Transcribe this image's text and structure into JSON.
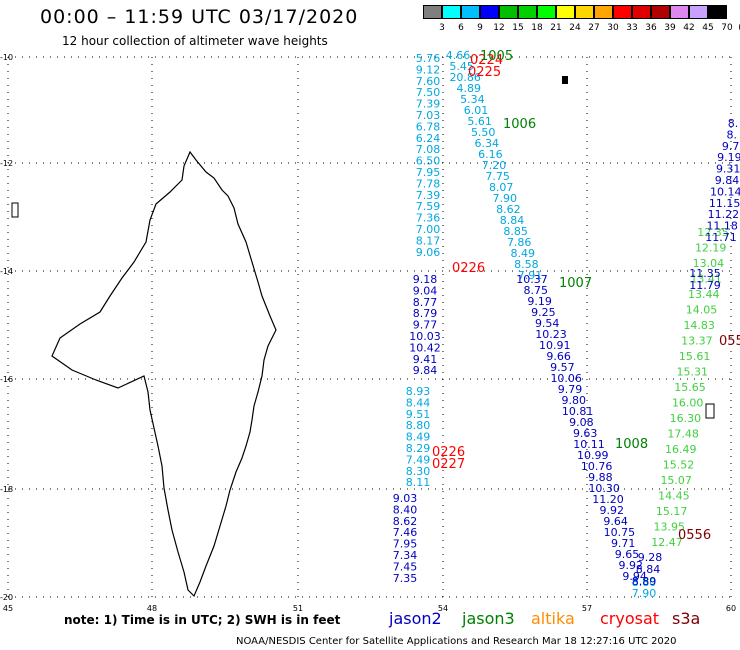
{
  "title": "00:00 – 11:59 UTC 03/17/2020",
  "subtitle": "12 hour collection of altimeter wave heights",
  "scale": {
    "unit": "(ft)",
    "steps": [
      {
        "label": "3",
        "color": "#7f7f7f"
      },
      {
        "label": "6",
        "color": "#00ffff"
      },
      {
        "label": "9",
        "color": "#00bfff"
      },
      {
        "label": "12",
        "color": "#0000ff"
      },
      {
        "label": "15",
        "color": "#00bf00"
      },
      {
        "label": "18",
        "color": "#00d000"
      },
      {
        "label": "21",
        "color": "#00ff00"
      },
      {
        "label": "24",
        "color": "#ffff00"
      },
      {
        "label": "27",
        "color": "#ffd700"
      },
      {
        "label": "30",
        "color": "#ffa500"
      },
      {
        "label": "33",
        "color": "#ff0000"
      },
      {
        "label": "36",
        "color": "#e00000"
      },
      {
        "label": "39",
        "color": "#b00000"
      },
      {
        "label": "42",
        "color": "#dd88ee"
      },
      {
        "label": "45",
        "color": "#c8a0ff"
      },
      {
        "label": "70",
        "color": "#000000"
      }
    ]
  },
  "axes": {
    "lon_labels": [
      "45",
      "48",
      "51",
      "54",
      "57",
      "60"
    ],
    "lat_labels": [
      "-10",
      "-12",
      "-14",
      "-16",
      "-18",
      "-20"
    ]
  },
  "colors": {
    "jason2": "#0000c0",
    "jason3": "#008000",
    "altika": "#ff8c00",
    "cryosat": "#ff0000",
    "s3a": "#800000",
    "cyan": "#00a8e0",
    "lightgreen": "#40d040"
  },
  "track_labels": [
    {
      "text": "0224",
      "sat": "cryosat"
    },
    {
      "text": "1005",
      "sat": "jason3"
    },
    {
      "text": "0225",
      "sat": "cryosat"
    },
    {
      "text": "1006",
      "sat": "jason3"
    },
    {
      "text": "0226",
      "sat": "cryosat"
    },
    {
      "text": "1007",
      "sat": "jason3"
    },
    {
      "text": "0226",
      "sat": "cryosat"
    },
    {
      "text": "0227",
      "sat": "cryosat"
    },
    {
      "text": "1008",
      "sat": "jason3"
    },
    {
      "text": "0556",
      "sat": "s3a"
    },
    {
      "text": "055",
      "sat": "s3a"
    }
  ],
  "tracks": [
    {
      "id": "A",
      "color": "cyan",
      "values": [
        "5.76",
        "9.12",
        "7.60",
        "7.50",
        "7.39",
        "7.03",
        "6.78",
        "6.24",
        "7.08",
        "6.50",
        "7.95",
        "7.78",
        "7.39",
        "7.59",
        "7.36",
        "7.00",
        "8.17",
        "9.06"
      ]
    },
    {
      "id": "A2",
      "color": "jason2",
      "values": [
        "9.18",
        "9.04",
        "8.77",
        "8.79",
        "9.77",
        "10.03",
        "10.42",
        "9.41",
        "9.84"
      ]
    },
    {
      "id": "A3",
      "color": "cyan",
      "values": [
        "8.93",
        "8.44",
        "9.51",
        "8.80",
        "8.49",
        "8.29",
        "7.49",
        "8.30",
        "8.11"
      ]
    },
    {
      "id": "A4",
      "color": "jason2",
      "values": [
        "9.03",
        "8.40",
        "8.62",
        "7.46",
        "7.95",
        "7.34",
        "7.45",
        "7.35"
      ]
    },
    {
      "id": "B",
      "color": "cyan",
      "values": [
        "4.66",
        "5.45",
        "20.86",
        "4.89",
        "5.34",
        "6.01",
        "5.61",
        "5.50",
        "6.34",
        "6.16",
        "7.20",
        "7.75",
        "8.07",
        "7.90",
        "8.62",
        "8.84",
        "8.85",
        "7.86",
        "8.49",
        "8.58",
        "7.91"
      ]
    },
    {
      "id": "B2",
      "color": "jason2",
      "values": [
        "10.37",
        "8.75",
        "9.19",
        "9.25",
        "9.54",
        "10.23",
        "10.91",
        "9.66",
        "9.57",
        "10.06",
        "9.79",
        "9.80",
        "10.81",
        "9.08",
        "9.63",
        "10.11",
        "10.99",
        "10.76",
        "9.88",
        "10.30",
        "11.20",
        "9.92",
        "9.64",
        "10.75",
        "9.71",
        "9.65",
        "9.92",
        "9.94"
      ]
    },
    {
      "id": "B3",
      "color": "cyan",
      "values": [
        "8.80",
        "7.90"
      ]
    },
    {
      "id": "C",
      "color": "lightgreen",
      "values": [
        "12.35",
        "12.19",
        "13.04",
        "13.41",
        "13.44",
        "14.05",
        "14.83",
        "13.37",
        "15.61",
        "15.31",
        "15.65",
        "16.00",
        "16.30",
        "17.48",
        "16.49",
        "15.52",
        "15.07",
        "14.45",
        "15.17",
        "13.95",
        "12.47"
      ]
    },
    {
      "id": "C2",
      "color": "jason2",
      "values": [
        "11.35",
        "11.79",
        "9.28",
        "8.84",
        "8.89"
      ]
    },
    {
      "id": "D",
      "color": "jason2",
      "values": [
        "8.",
        "8.",
        "9.7",
        "9.19",
        "9.31",
        "9.84",
        "10.14",
        "11.15",
        "11.22",
        "11.18",
        "11.71"
      ]
    }
  ],
  "note": "note:  1) Time is in UTC; 2) SWH is in feet",
  "legend": [
    {
      "label": "jason2",
      "sat": "jason2"
    },
    {
      "label": "jason3",
      "sat": "jason3"
    },
    {
      "label": "altika",
      "sat": "altika"
    },
    {
      "label": "cryosat",
      "sat": "cryosat"
    },
    {
      "label": "s3a",
      "sat": "s3a"
    }
  ],
  "footer": "NOAA/NESDIS Center for Satellite Applications and Research    Mar 18 12:27:16 UTC 2020"
}
